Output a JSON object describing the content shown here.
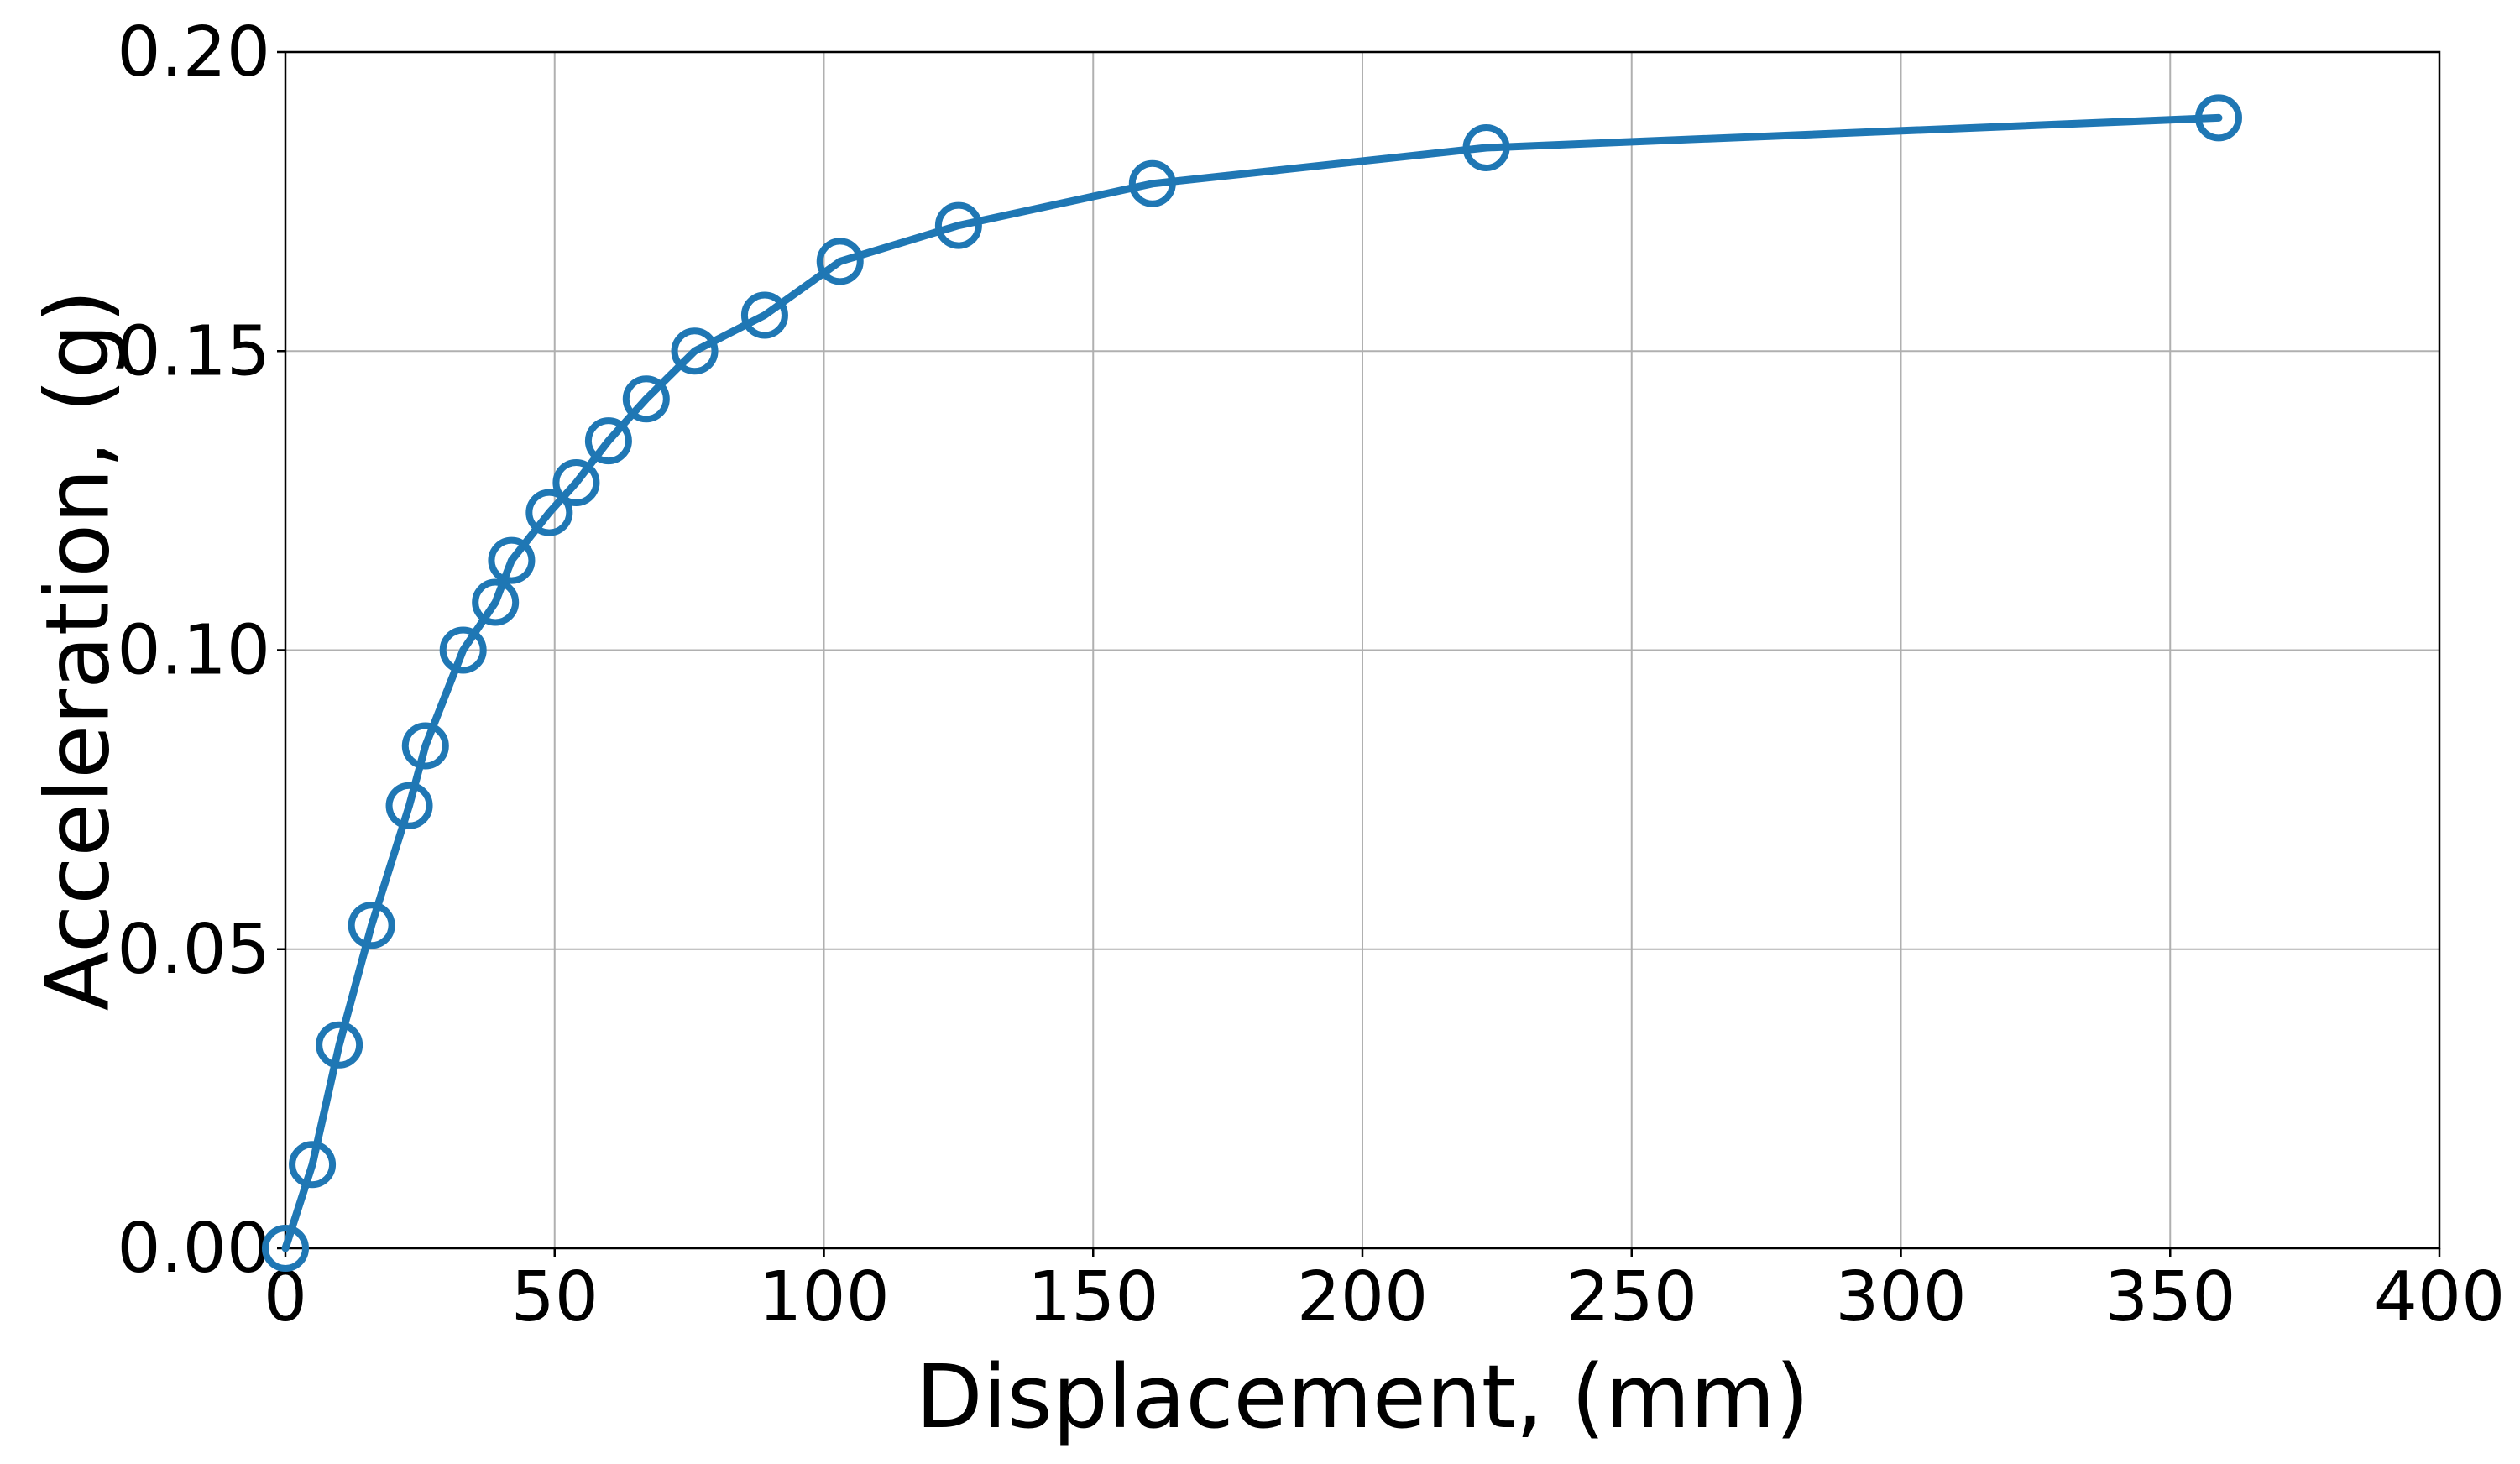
{
  "chart_data": {
    "type": "line",
    "title": "",
    "xlabel": "Displacement, (mm)",
    "ylabel": "Acceleration, (g)",
    "xlim": [
      0,
      400
    ],
    "ylim": [
      0.0,
      0.2
    ],
    "xticks": [
      0,
      50,
      100,
      150,
      200,
      250,
      300,
      350,
      400
    ],
    "xtick_labels": [
      "0",
      "50",
      "100",
      "150",
      "200",
      "250",
      "300",
      "350",
      "400"
    ],
    "yticks": [
      0.0,
      0.05,
      0.1,
      0.15,
      0.2
    ],
    "ytick_labels": [
      "0.00",
      "0.05",
      "0.10",
      "0.15",
      "0.20"
    ],
    "grid": true,
    "legend": "none",
    "marker": "open-circle",
    "color": "#1f77b4",
    "series": [
      {
        "x": [
          0,
          5,
          10,
          16,
          23,
          26,
          33,
          39,
          42,
          49,
          54,
          60,
          67,
          76,
          89,
          103,
          125,
          161,
          223,
          359
        ],
        "y": [
          0.0,
          0.014,
          0.034,
          0.054,
          0.074,
          0.084,
          0.1,
          0.108,
          0.115,
          0.123,
          0.128,
          0.135,
          0.142,
          0.15,
          0.156,
          0.165,
          0.171,
          0.178,
          0.184,
          0.189
        ]
      }
    ]
  }
}
